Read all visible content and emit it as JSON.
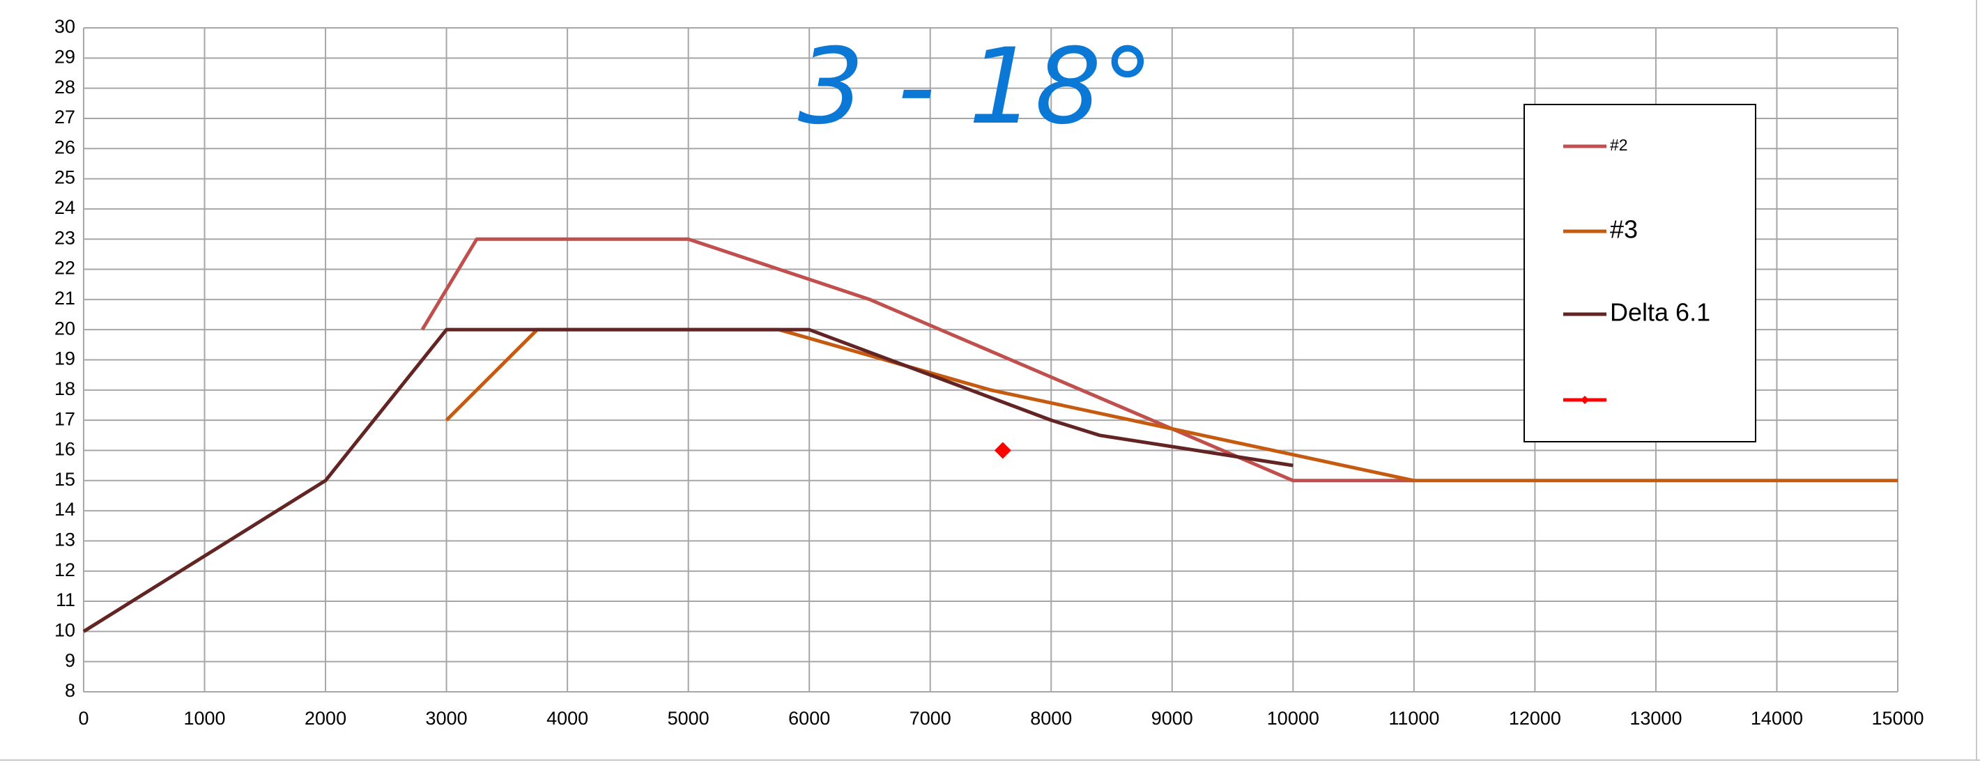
{
  "chart_data": {
    "type": "line",
    "annotation": "3 - 18°",
    "xlim": [
      0,
      15000
    ],
    "xticks": [
      0,
      1000,
      2000,
      3000,
      4000,
      5000,
      6000,
      7000,
      8000,
      9000,
      10000,
      11000,
      12000,
      13000,
      14000,
      15000
    ],
    "ylim": [
      8,
      30
    ],
    "yticks": [
      8,
      9,
      10,
      11,
      12,
      13,
      14,
      15,
      16,
      17,
      18,
      19,
      20,
      21,
      22,
      23,
      24,
      25,
      26,
      27,
      28,
      29,
      30
    ],
    "grid": true,
    "series": [
      {
        "name": "#2",
        "color": "#c0504d",
        "x": [
          2800,
          3250,
          5000,
          6500,
          10000,
          11000
        ],
        "values": [
          20,
          23,
          23,
          21,
          15,
          15
        ]
      },
      {
        "name": "#3",
        "color": "#c55a11",
        "x": [
          3000,
          3750,
          5750,
          7500,
          11000,
          15000
        ],
        "values": [
          17,
          20,
          20,
          18,
          15,
          15
        ]
      },
      {
        "name": "Delta 6.1",
        "color": "#632523",
        "x": [
          0,
          2000,
          3000,
          6000,
          8000,
          8400,
          10000
        ],
        "values": [
          10,
          15,
          20,
          20,
          17,
          16.5,
          15.5
        ]
      },
      {
        "color": "#ff0000",
        "marker": "diamond",
        "x": [
          7600
        ],
        "values": [
          16
        ]
      }
    ]
  }
}
